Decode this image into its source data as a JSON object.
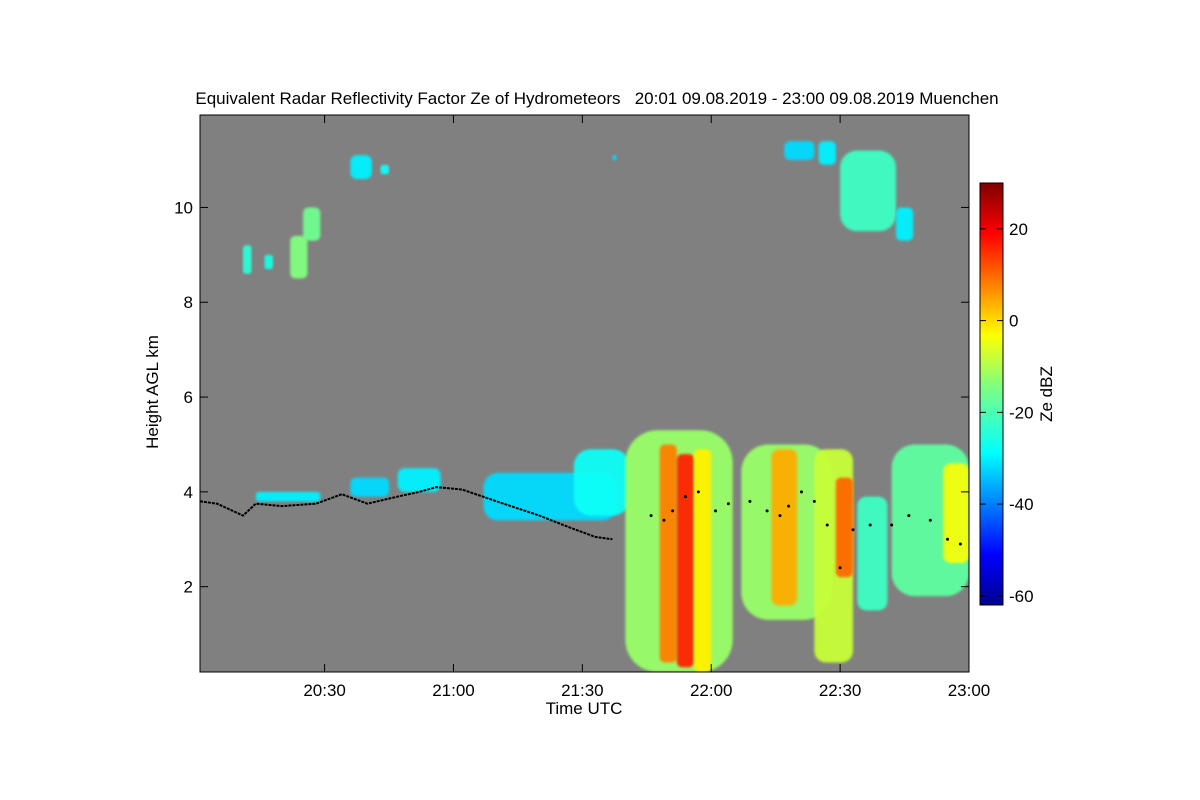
{
  "chart_data": {
    "type": "heatmap",
    "title": "Equivalent Radar Reflectivity Factor Ze of Hydrometeors   20:01 09.08.2019 - 23:00 09.08.2019 Muenchen",
    "xlabel": "Time UTC",
    "ylabel": "Height AGL km",
    "xlim_min": [
      1201,
      1380
    ],
    "ylim_km": [
      0.2,
      11.95
    ],
    "x_ticks": [
      {
        "t": 1230,
        "label": "20:30"
      },
      {
        "t": 1260,
        "label": "21:00"
      },
      {
        "t": 1290,
        "label": "21:30"
      },
      {
        "t": 1320,
        "label": "22:00"
      },
      {
        "t": 1350,
        "label": "22:30"
      },
      {
        "t": 1380,
        "label": "23:00"
      }
    ],
    "y_ticks": [
      {
        "v": 2,
        "label": "2"
      },
      {
        "v": 4,
        "label": "4"
      },
      {
        "v": 6,
        "label": "6"
      },
      {
        "v": 8,
        "label": "8"
      },
      {
        "v": 10,
        "label": "10"
      }
    ],
    "colorbar": {
      "label": "Ze dBZ",
      "range": [
        -62,
        30
      ],
      "ticks": [
        {
          "v": -60,
          "label": "-60"
        },
        {
          "v": -40,
          "label": "-40"
        },
        {
          "v": -20,
          "label": "-20"
        },
        {
          "v": 0,
          "label": "0"
        },
        {
          "v": 20,
          "label": "20"
        }
      ],
      "colormap": "jet"
    },
    "background_color": "#808080",
    "echo_regions": [
      {
        "t0": 1211,
        "t1": 1213,
        "h0": 8.6,
        "h1": 9.2,
        "ze": -24
      },
      {
        "t0": 1216,
        "t1": 1218,
        "h0": 8.7,
        "h1": 9.0,
        "ze": -26
      },
      {
        "t0": 1222,
        "t1": 1226,
        "h0": 8.5,
        "h1": 9.4,
        "ze": -14
      },
      {
        "t0": 1225,
        "t1": 1229,
        "h0": 9.3,
        "h1": 10.0,
        "ze": -16
      },
      {
        "t0": 1236,
        "t1": 1241,
        "h0": 10.6,
        "h1": 11.1,
        "ze": -30
      },
      {
        "t0": 1243,
        "t1": 1245,
        "h0": 10.7,
        "h1": 10.9,
        "ze": -28
      },
      {
        "t0": 1214,
        "t1": 1229,
        "h0": 3.8,
        "h1": 4.0,
        "ze": -30
      },
      {
        "t0": 1236,
        "t1": 1245,
        "h0": 3.9,
        "h1": 4.3,
        "ze": -32
      },
      {
        "t0": 1247,
        "t1": 1257,
        "h0": 4.0,
        "h1": 4.5,
        "ze": -30
      },
      {
        "t0": 1267,
        "t1": 1298,
        "h0": 3.4,
        "h1": 4.4,
        "ze": -32
      },
      {
        "t0": 1288,
        "t1": 1301,
        "h0": 3.5,
        "h1": 4.9,
        "ze": -28
      },
      {
        "t0": 1300,
        "t1": 1325,
        "h0": 0.2,
        "h1": 5.3,
        "ze": -12
      },
      {
        "t0": 1308,
        "t1": 1312,
        "h0": 0.4,
        "h1": 5.0,
        "ze": 8
      },
      {
        "t0": 1312,
        "t1": 1316,
        "h0": 0.3,
        "h1": 4.8,
        "ze": 16
      },
      {
        "t0": 1316,
        "t1": 1320,
        "h0": 0.2,
        "h1": 4.9,
        "ze": -2
      },
      {
        "t0": 1327,
        "t1": 1348,
        "h0": 1.3,
        "h1": 5.0,
        "ze": -12
      },
      {
        "t0": 1334,
        "t1": 1340,
        "h0": 1.6,
        "h1": 4.9,
        "ze": 4
      },
      {
        "t0": 1344,
        "t1": 1353,
        "h0": 0.4,
        "h1": 4.9,
        "ze": -8
      },
      {
        "t0": 1349,
        "t1": 1353,
        "h0": 2.2,
        "h1": 4.3,
        "ze": 10
      },
      {
        "t0": 1354,
        "t1": 1361,
        "h0": 1.5,
        "h1": 3.9,
        "ze": -22
      },
      {
        "t0": 1362,
        "t1": 1380,
        "h0": 1.8,
        "h1": 5.0,
        "ze": -18
      },
      {
        "t0": 1374,
        "t1": 1380,
        "h0": 2.5,
        "h1": 4.6,
        "ze": -4
      },
      {
        "t0": 1297,
        "t1": 1298,
        "h0": 11.0,
        "h1": 11.1,
        "ze": -32
      },
      {
        "t0": 1337,
        "t1": 1344,
        "h0": 11.0,
        "h1": 11.4,
        "ze": -32
      },
      {
        "t0": 1345,
        "t1": 1349,
        "h0": 10.9,
        "h1": 11.4,
        "ze": -30
      },
      {
        "t0": 1350,
        "t1": 1363,
        "h0": 9.5,
        "h1": 11.2,
        "ze": -22
      },
      {
        "t0": 1363,
        "t1": 1367,
        "h0": 9.3,
        "h1": 10.0,
        "ze": -30
      }
    ],
    "melting_layer_line": [
      [
        1201,
        3.8
      ],
      [
        1205,
        3.75
      ],
      [
        1211,
        3.5
      ],
      [
        1214,
        3.75
      ],
      [
        1220,
        3.7
      ],
      [
        1228,
        3.75
      ],
      [
        1234,
        3.95
      ],
      [
        1240,
        3.75
      ],
      [
        1247,
        3.9
      ],
      [
        1252,
        4.0
      ],
      [
        1256,
        4.1
      ],
      [
        1262,
        4.05
      ],
      [
        1270,
        3.8
      ],
      [
        1280,
        3.5
      ],
      [
        1287,
        3.25
      ],
      [
        1293,
        3.05
      ],
      [
        1297,
        3.0
      ]
    ],
    "melting_layer_points": [
      [
        1306,
        3.5
      ],
      [
        1309,
        3.4
      ],
      [
        1311,
        3.6
      ],
      [
        1314,
        3.9
      ],
      [
        1317,
        4.0
      ],
      [
        1321,
        3.6
      ],
      [
        1324,
        3.75
      ],
      [
        1329,
        3.8
      ],
      [
        1333,
        3.6
      ],
      [
        1336,
        3.5
      ],
      [
        1338,
        3.7
      ],
      [
        1341,
        4.0
      ],
      [
        1344,
        3.8
      ],
      [
        1347,
        3.3
      ],
      [
        1350,
        2.4
      ],
      [
        1353,
        3.2
      ],
      [
        1357,
        3.3
      ],
      [
        1362,
        3.3
      ],
      [
        1366,
        3.5
      ],
      [
        1371,
        3.4
      ],
      [
        1375,
        3.0
      ],
      [
        1378,
        2.9
      ]
    ]
  }
}
